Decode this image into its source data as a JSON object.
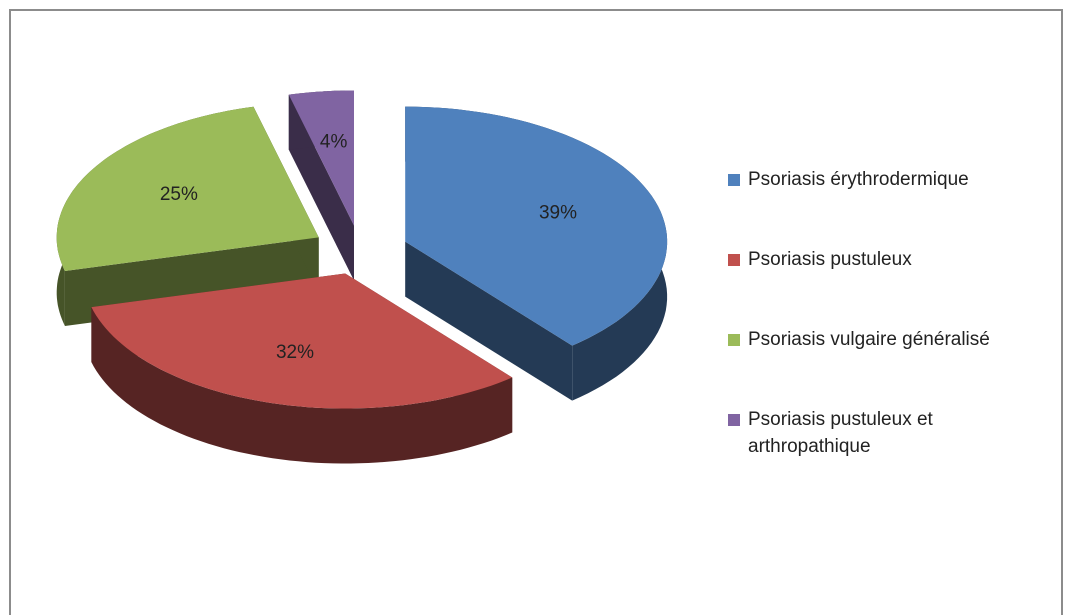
{
  "chart_data": {
    "type": "pie",
    "categories": [
      "Psoriasis érythrodermique",
      "Psoriasis pustuleux",
      "Psoriasis vulgaire généralisé",
      "Psoriasis pustuleux et arthropathique"
    ],
    "values": [
      39,
      32,
      25,
      4
    ],
    "value_labels": [
      "39%",
      "32%",
      "25%",
      "4%"
    ],
    "colors": [
      "#4f81bd",
      "#c0504d",
      "#9bbb59",
      "#8064a2"
    ],
    "legend": "right"
  }
}
